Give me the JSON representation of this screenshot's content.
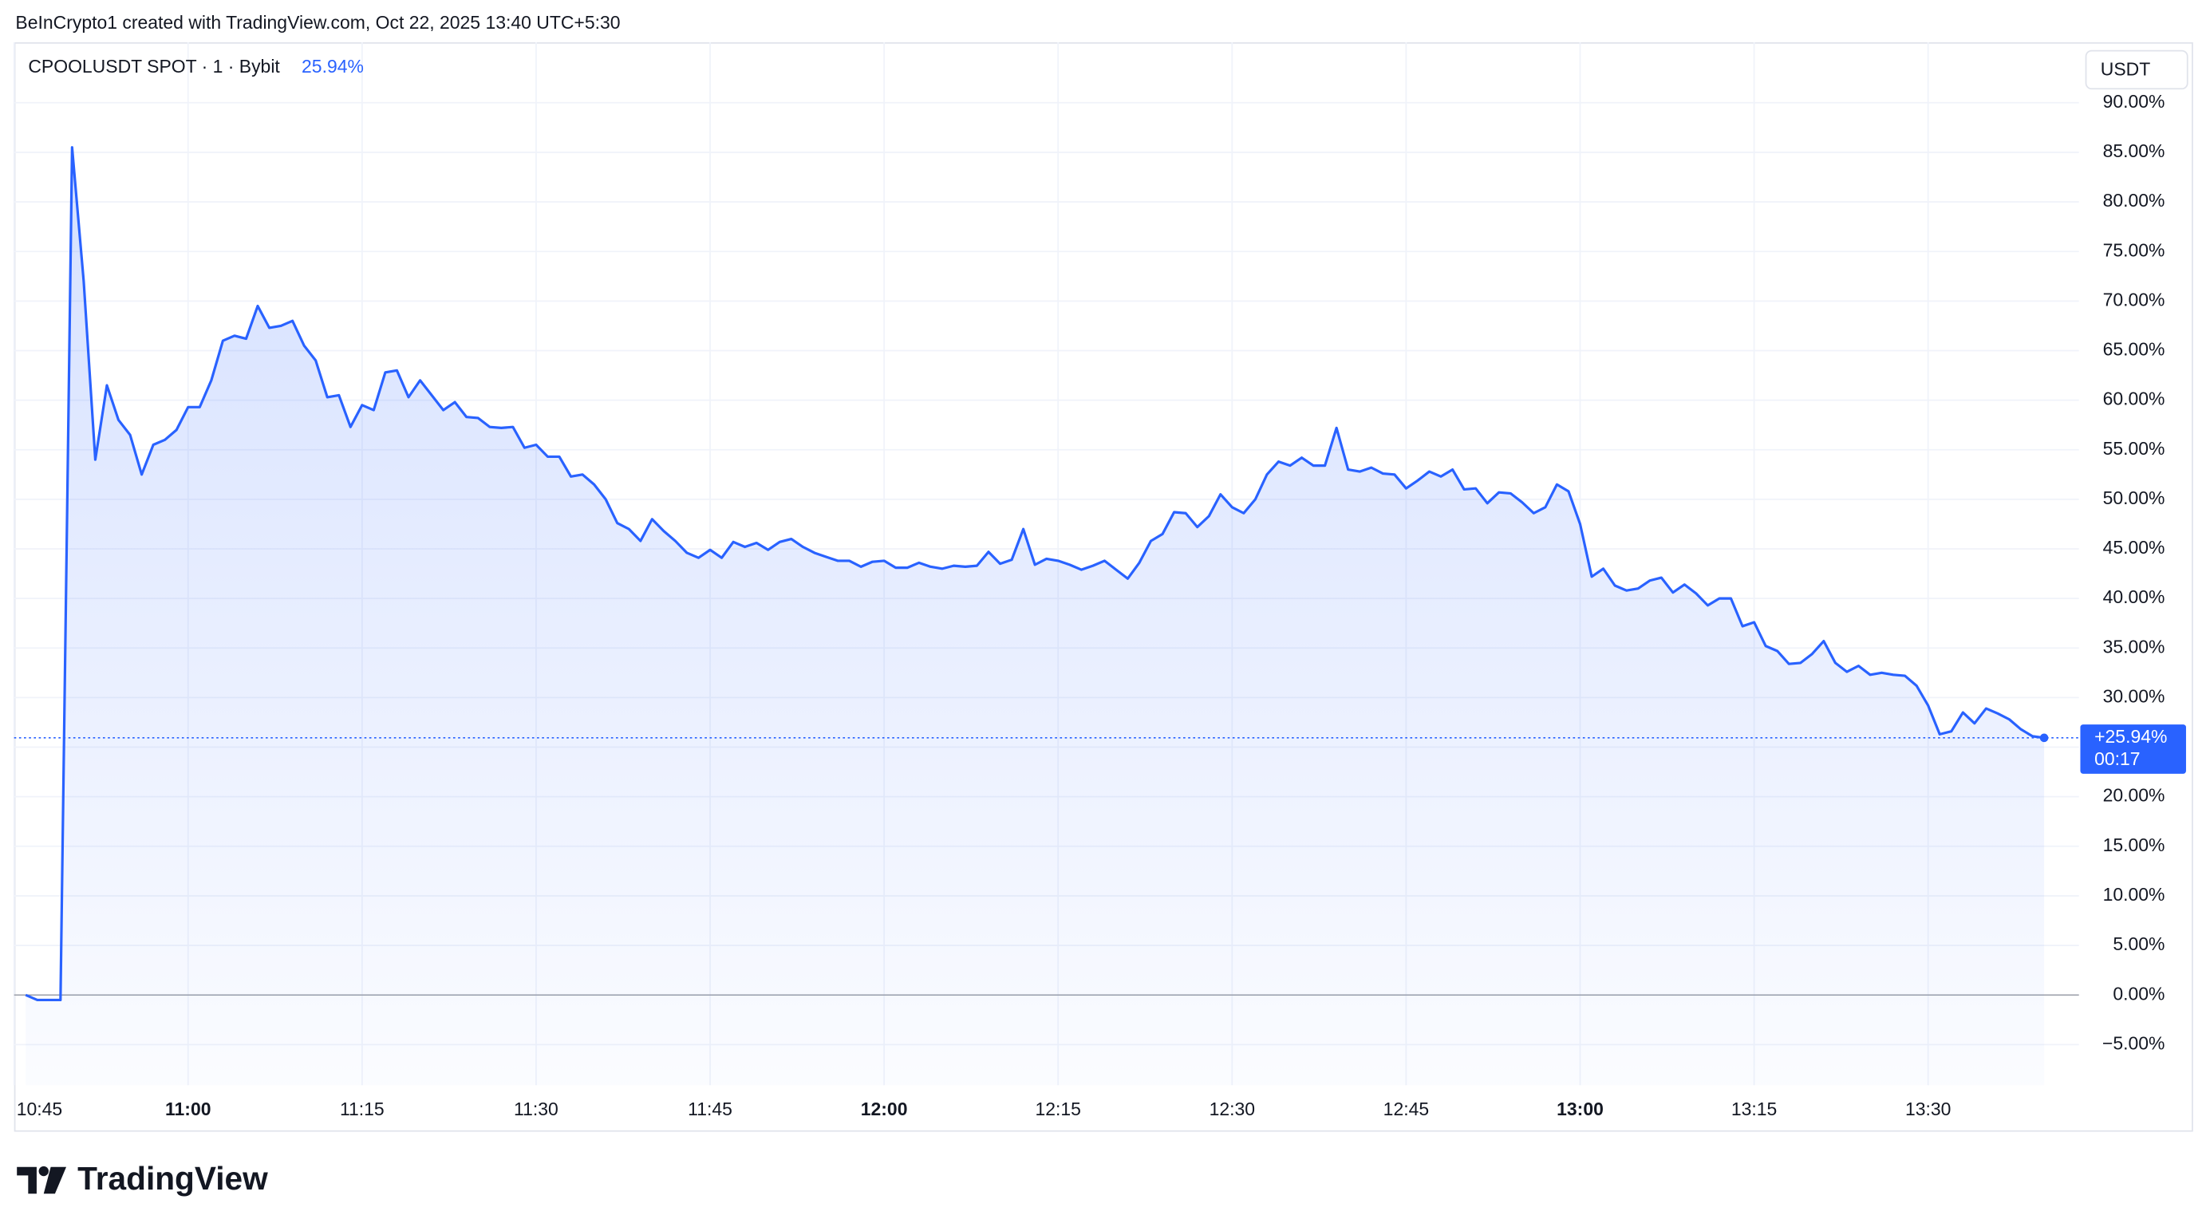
{
  "chart_data": {
    "type": "line",
    "credit": "BeInCrypto1 created with TradingView.com, Oct 22, 2025 13:40 UTC+5:30",
    "brand": "TradingView",
    "currency": "USDT",
    "countdown": "00:17",
    "last_value": {
      "value": 25.94,
      "legend_label": "25.94%",
      "tag_label": "+25.94%"
    },
    "series": [
      {
        "name": "CPOOLUSDT SPOT · 1 · Bybit",
        "color": "#2962ff",
        "x": [
          "10:46",
          "10:47",
          "10:48",
          "10:49",
          "10:50",
          "10:51",
          "10:52",
          "10:53",
          "10:54",
          "10:55",
          "10:56",
          "10:57",
          "10:58",
          "10:59",
          "11:00",
          "11:01",
          "11:02",
          "11:03",
          "11:04",
          "11:05",
          "11:06",
          "11:07",
          "11:08",
          "11:09",
          "11:10",
          "11:11",
          "11:12",
          "11:13",
          "11:14",
          "11:15",
          "11:16",
          "11:17",
          "11:18",
          "11:19",
          "11:20",
          "11:21",
          "11:22",
          "11:23",
          "11:24",
          "11:25",
          "11:26",
          "11:27",
          "11:28",
          "11:29",
          "11:30",
          "11:31",
          "11:32",
          "11:33",
          "11:34",
          "11:35",
          "11:36",
          "11:37",
          "11:38",
          "11:39",
          "11:40",
          "11:41",
          "11:42",
          "11:43",
          "11:44",
          "11:45",
          "11:46",
          "11:47",
          "11:48",
          "11:49",
          "11:50",
          "11:51",
          "11:52",
          "11:53",
          "11:54",
          "11:55",
          "11:56",
          "11:57",
          "11:58",
          "11:59",
          "12:00",
          "12:01",
          "12:02",
          "12:03",
          "12:04",
          "12:05",
          "12:06",
          "12:07",
          "12:08",
          "12:09",
          "12:10",
          "12:11",
          "12:12",
          "12:13",
          "12:14",
          "12:15",
          "12:16",
          "12:17",
          "12:18",
          "12:19",
          "12:20",
          "12:21",
          "12:22",
          "12:23",
          "12:24",
          "12:25",
          "12:26",
          "12:27",
          "12:28",
          "12:29",
          "12:30",
          "12:31",
          "12:32",
          "12:33",
          "12:34",
          "12:35",
          "12:36",
          "12:37",
          "12:38",
          "12:39",
          "12:40",
          "12:41",
          "12:42",
          "12:43",
          "12:44",
          "12:45",
          "12:46",
          "12:47",
          "12:48",
          "12:49",
          "12:50",
          "12:51",
          "12:52",
          "12:53",
          "12:54",
          "12:55",
          "12:56",
          "12:57",
          "12:58",
          "12:59",
          "13:00",
          "13:01",
          "13:02",
          "13:03",
          "13:04",
          "13:05",
          "13:06",
          "13:07",
          "13:08",
          "13:09",
          "13:10",
          "13:11",
          "13:12",
          "13:13",
          "13:14",
          "13:15",
          "13:16",
          "13:17",
          "13:18",
          "13:19",
          "13:20",
          "13:21",
          "13:22",
          "13:23",
          "13:24",
          "13:25",
          "13:26",
          "13:27",
          "13:28",
          "13:29",
          "13:30",
          "13:31",
          "13:32",
          "13:33",
          "13:34",
          "13:35",
          "13:36",
          "13:37",
          "13:38",
          "13:39",
          "13:40"
        ],
        "values": [
          0,
          -0.5,
          -0.5,
          -0.5,
          85.5,
          72,
          54,
          61.5,
          58,
          56.5,
          52.5,
          55.5,
          56,
          57,
          59.3,
          59.3,
          62,
          66,
          66.5,
          66.2,
          69.5,
          67.3,
          67.5,
          68,
          65.5,
          64,
          60.3,
          60.5,
          57.3,
          59.5,
          59,
          62.8,
          63,
          60.3,
          62,
          60.5,
          59,
          59.8,
          58.3,
          58.2,
          57.3,
          57.2,
          57.3,
          55.2,
          55.5,
          54.3,
          54.3,
          52.3,
          52.5,
          51.5,
          50,
          47.6,
          47,
          45.8,
          48,
          46.8,
          45.8,
          44.6,
          44.1,
          44.9,
          44.1,
          45.7,
          45.2,
          45.6,
          44.9,
          45.7,
          46,
          45.2,
          44.6,
          44.2,
          43.8,
          43.8,
          43.2,
          43.7,
          43.8,
          43.1,
          43.1,
          43.6,
          43.2,
          43,
          43.3,
          43.2,
          43.3,
          44.7,
          43.5,
          43.9,
          47,
          43.4,
          44,
          43.8,
          43.4,
          42.9,
          43.3,
          43.8,
          42.9,
          42,
          43.6,
          45.8,
          46.5,
          48.7,
          48.6,
          47.2,
          48.3,
          50.5,
          49.2,
          48.6,
          50,
          52.5,
          53.8,
          53.4,
          54.2,
          53.4,
          53.4,
          57.2,
          53,
          52.8,
          53.2,
          52.6,
          52.5,
          51.1,
          51.9,
          52.8,
          52.3,
          53,
          51,
          51.1,
          49.6,
          50.7,
          50.6,
          49.7,
          48.6,
          49.2,
          51.5,
          50.8,
          47.5,
          42.2,
          43,
          41.3,
          40.8,
          41,
          41.8,
          42.1,
          40.6,
          41.4,
          40.5,
          39.3,
          40,
          40,
          37.2,
          37.6,
          35.2,
          34.7,
          33.4,
          33.5,
          34.4,
          35.7,
          33.5,
          32.6,
          33.2,
          32.3,
          32.5,
          32.3,
          32.2,
          31.2,
          29.2,
          26.3,
          26.6,
          28.5,
          27.4,
          28.9,
          28.4,
          27.8,
          26.8,
          26.1,
          25.94
        ]
      }
    ],
    "xlim": [
      "10:45",
      "13:43"
    ],
    "xticks": [
      "10:45",
      "11:00",
      "11:15",
      "11:30",
      "11:45",
      "12:00",
      "12:15",
      "12:30",
      "12:45",
      "13:00",
      "13:15",
      "13:30"
    ],
    "ylim": [
      -9.1,
      96.1
    ],
    "yticks": [
      {
        "value": -5,
        "label": "−5.00%"
      },
      {
        "value": 0,
        "label": "0.00%"
      },
      {
        "value": 5,
        "label": "5.00%"
      },
      {
        "value": 10,
        "label": "10.00%"
      },
      {
        "value": 15,
        "label": "15.00%"
      },
      {
        "value": 20,
        "label": "20.00%"
      },
      {
        "value": 25,
        "label": "25.00%"
      },
      {
        "value": 30,
        "label": "30.00%"
      },
      {
        "value": 35,
        "label": "35.00%"
      },
      {
        "value": 40,
        "label": "40.00%"
      },
      {
        "value": 45,
        "label": "45.00%"
      },
      {
        "value": 50,
        "label": "50.00%"
      },
      {
        "value": 55,
        "label": "55.00%"
      },
      {
        "value": 60,
        "label": "60.00%"
      },
      {
        "value": 65,
        "label": "65.00%"
      },
      {
        "value": 70,
        "label": "70.00%"
      },
      {
        "value": 75,
        "label": "75.00%"
      },
      {
        "value": 80,
        "label": "80.00%"
      },
      {
        "value": 85,
        "label": "85.00%"
      },
      {
        "value": 90,
        "label": "90.00%"
      }
    ],
    "grid": true
  }
}
